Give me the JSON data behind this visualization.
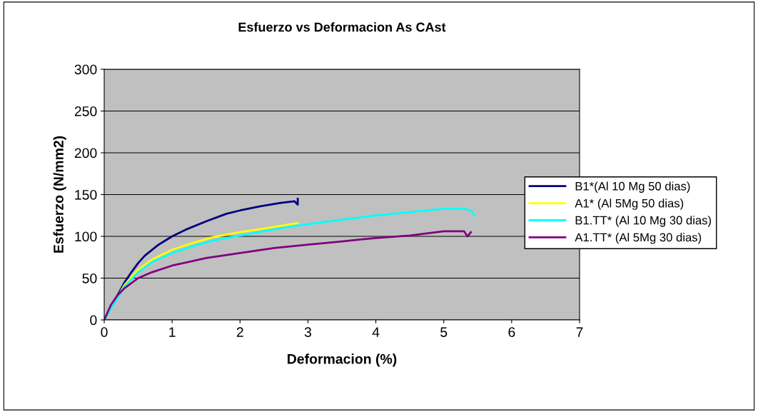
{
  "chart_data": {
    "type": "line",
    "title": "Esfuerzo vs Deformacion As CAst",
    "xlabel": "Deformacion (%)",
    "ylabel": "Esfuerzo (N/mm2)",
    "xlim": [
      0,
      7
    ],
    "xticks": [
      0,
      1,
      2,
      3,
      4,
      5,
      6,
      7
    ],
    "ylim": [
      0,
      300
    ],
    "yticks": [
      0,
      50,
      100,
      150,
      200,
      250,
      300
    ],
    "grid": "y",
    "legend": "right",
    "marker": "none",
    "line_style": "solid",
    "series": [
      {
        "name": "B1*(Al 10 Mg 50 dias)",
        "color": "#000080",
        "x": [
          0,
          0.2,
          0.3,
          0.4,
          0.5,
          0.6,
          0.8,
          1.0,
          1.2,
          1.5,
          1.8,
          2.0,
          2.3,
          2.6,
          2.8,
          2.85,
          2.85
        ],
        "values": [
          0,
          30,
          45,
          57,
          68,
          77,
          90,
          100,
          108,
          118,
          127,
          131,
          136,
          140,
          142,
          138,
          145
        ]
      },
      {
        "name": "A1* (Al 5Mg 50 dias)",
        "color": "#ffff00",
        "x": [
          0,
          0.3,
          0.5,
          0.7,
          1.0,
          1.3,
          1.6,
          2.0,
          2.4,
          2.85
        ],
        "values": [
          0,
          42,
          60,
          72,
          84,
          92,
          99,
          105,
          110,
          116
        ]
      },
      {
        "name": "B1.TT* (Al 10 Mg 30 dias)",
        "color": "#00ffff",
        "x": [
          0,
          0.2,
          0.3,
          0.5,
          0.7,
          1.0,
          1.3,
          1.6,
          2.0,
          2.4,
          2.85,
          3.5,
          4.0,
          4.5,
          5.0,
          5.3,
          5.4,
          5.45
        ],
        "values": [
          0,
          27,
          40,
          57,
          69,
          80,
          88,
          95,
          101,
          107,
          113,
          120,
          125,
          129,
          133,
          133,
          131,
          125
        ]
      },
      {
        "name": "A1.TT* (Al 5Mg 30 dias)",
        "color": "#800080",
        "x": [
          0,
          0.1,
          0.2,
          0.3,
          0.5,
          0.7,
          1.0,
          1.5,
          2.0,
          2.5,
          3.0,
          3.5,
          4.0,
          4.5,
          5.0,
          5.3,
          5.35,
          5.4
        ],
        "values": [
          0,
          18,
          30,
          38,
          50,
          57,
          65,
          74,
          80,
          86,
          90,
          94,
          98,
          101,
          106,
          106,
          100,
          105
        ]
      }
    ]
  }
}
